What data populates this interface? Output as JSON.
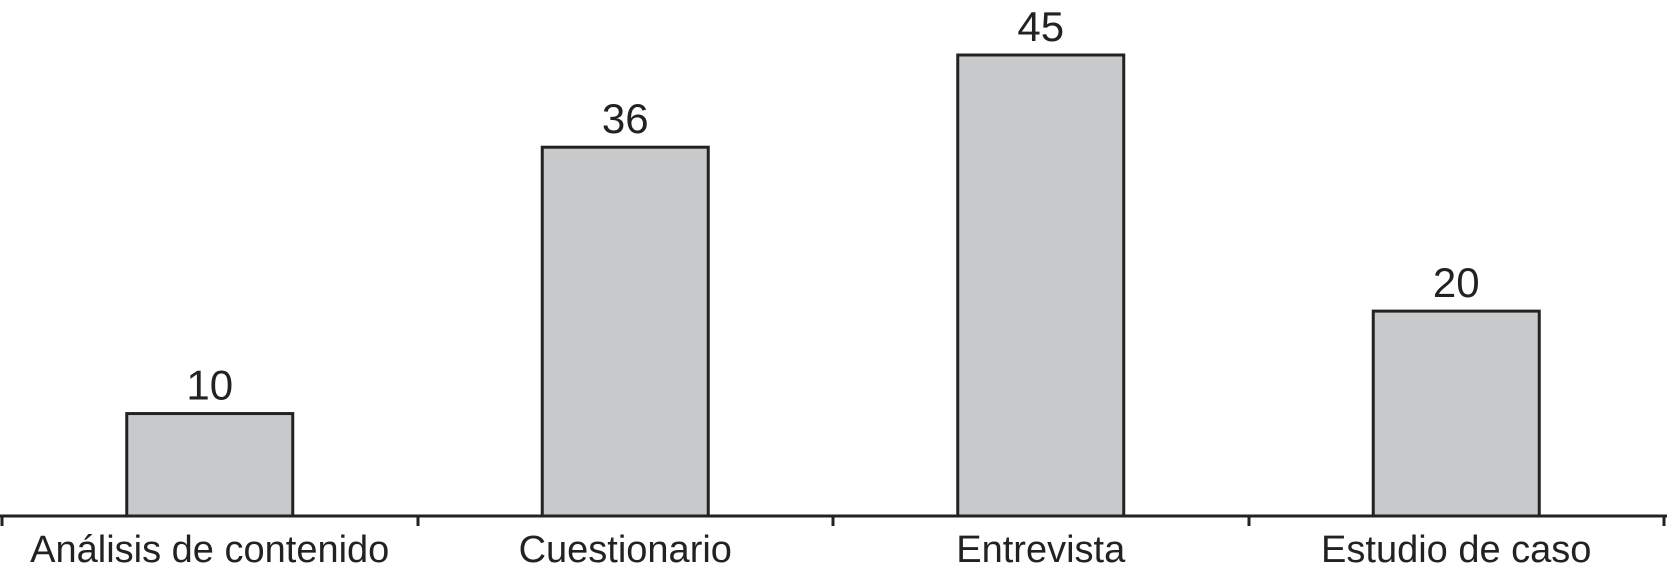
{
  "chart_data": {
    "type": "bar",
    "categories": [
      "Análisis de contenido",
      "Cuestionario",
      "Entrevista",
      "Estudio de caso"
    ],
    "values": [
      10,
      36,
      45,
      20
    ],
    "color": "#c8c9cb"
  }
}
